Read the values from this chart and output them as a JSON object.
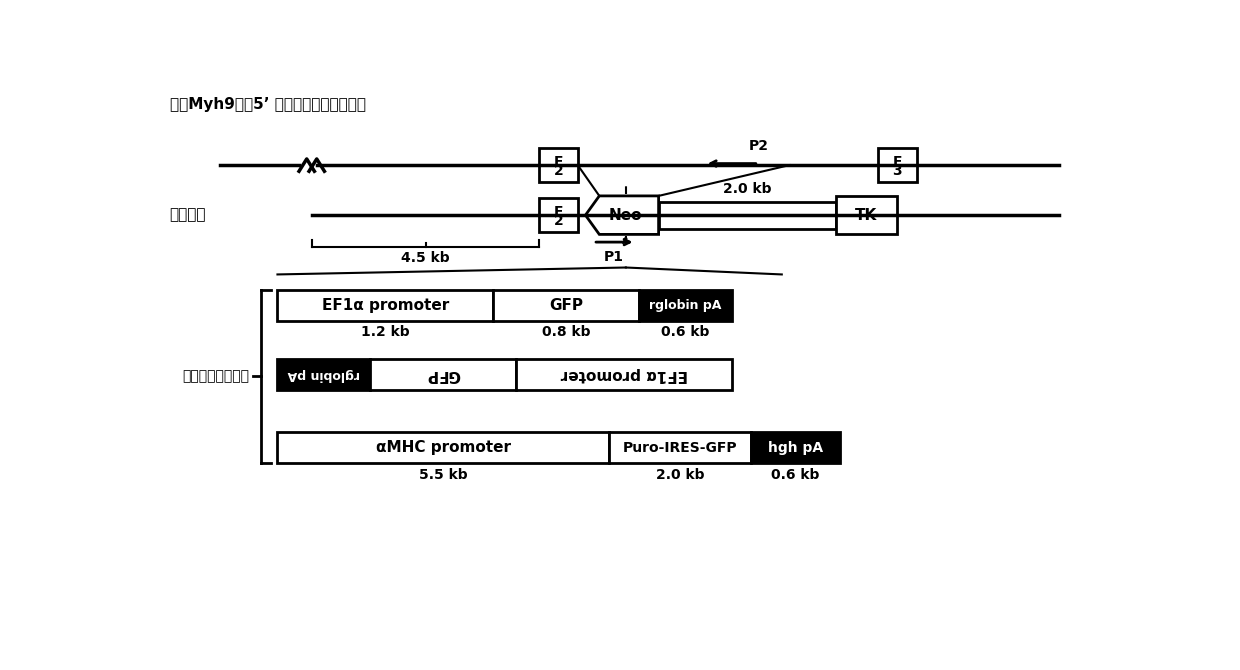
{
  "title_top": "小鼠Myh9基因5’ 端部分外显子和内含子",
  "label_vector": "打靠载体",
  "label_insert": "拟插入基因表达盒",
  "bg_color": "#ffffff",
  "line_color": "#000000"
}
